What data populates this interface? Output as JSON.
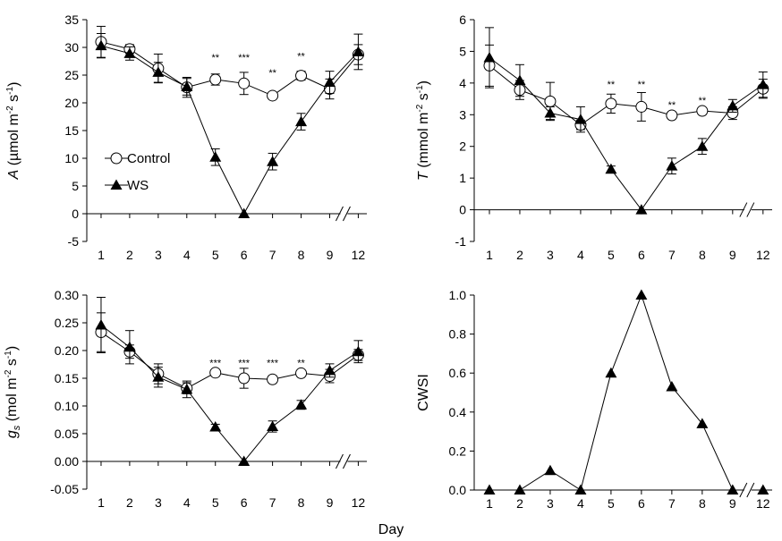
{
  "figure": {
    "xlabel": "Day"
  },
  "legend": {
    "control": "Control",
    "ws": "WS"
  },
  "chart_data": [
    {
      "id": "A",
      "type": "line",
      "ylabel": "A (µmol m⁻² s⁻¹)",
      "ylabel_italic": "A",
      "ylabel_rest": " (µmol m",
      "ylabel_exp1": "-2",
      "ylabel_mid": " s",
      "ylabel_exp2": "-1",
      "ylabel_end": ")",
      "ylim": [
        -5,
        35
      ],
      "yticks": [
        -5,
        0,
        5,
        10,
        15,
        20,
        25,
        30,
        35
      ],
      "ytick_labels": [
        "-5",
        "0",
        "5",
        "10",
        "15",
        "20",
        "25",
        "30",
        "35"
      ],
      "ytick_decimals": 0,
      "x": [
        "1",
        "2",
        "3",
        "4",
        "5",
        "6",
        "7",
        "8",
        "9",
        "12"
      ],
      "axis_break": "between 9 and 12",
      "series": [
        {
          "name": "Control",
          "marker": "open-circle",
          "values": [
            31.0,
            29.7,
            26.2,
            22.8,
            24.2,
            23.5,
            21.3,
            24.9,
            22.5,
            28.7
          ],
          "errors": [
            2.8,
            0.8,
            2.6,
            1.8,
            1.0,
            2.0,
            0.5,
            0.8,
            1.8,
            1.8
          ]
        },
        {
          "name": "WS",
          "marker": "filled-triangle",
          "values": [
            30.3,
            28.9,
            25.5,
            22.9,
            10.2,
            0.0,
            9.4,
            16.6,
            23.7,
            29.2
          ],
          "errors": [
            2.2,
            1.2,
            1.8,
            1.5,
            1.5,
            0.0,
            1.5,
            1.5,
            2.0,
            3.2
          ]
        }
      ],
      "annotations": [
        {
          "x": "5",
          "text": "**",
          "y": 27.6
        },
        {
          "x": "6",
          "text": "***",
          "y": 27.6
        },
        {
          "x": "7",
          "text": "**",
          "y": 24.8
        },
        {
          "x": "8",
          "text": "**",
          "y": 27.8
        }
      ],
      "grid": false
    },
    {
      "id": "T",
      "type": "line",
      "ylabel": "T (mmol m⁻² s⁻¹)",
      "ylabel_italic": "T",
      "ylabel_rest": " (mmol m",
      "ylabel_exp1": "-2",
      "ylabel_mid": " s",
      "ylabel_exp2": "-1",
      "ylabel_end": ")",
      "ylim": [
        -1,
        6
      ],
      "yticks": [
        -1,
        0,
        1,
        2,
        3,
        4,
        5,
        6
      ],
      "ytick_labels": [
        "-1",
        "0",
        "1",
        "2",
        "3",
        "4",
        "5",
        "6"
      ],
      "ytick_decimals": 0,
      "x": [
        "1",
        "2",
        "3",
        "4",
        "5",
        "6",
        "7",
        "8",
        "9",
        "12"
      ],
      "axis_break": "between 9 and 12",
      "series": [
        {
          "name": "Control",
          "marker": "open-circle",
          "values": [
            4.55,
            3.78,
            3.42,
            2.68,
            3.35,
            3.25,
            2.98,
            3.12,
            3.05,
            3.82
          ],
          "errors": [
            0.65,
            0.3,
            0.6,
            0.15,
            0.3,
            0.45,
            0.1,
            0.1,
            0.2,
            0.3
          ]
        },
        {
          "name": "WS",
          "marker": "filled-triangle",
          "values": [
            4.8,
            4.08,
            3.05,
            2.85,
            1.28,
            0.0,
            1.38,
            2.0,
            3.28,
            3.95
          ],
          "errors": [
            0.95,
            0.5,
            0.2,
            0.4,
            0.1,
            0.0,
            0.25,
            0.25,
            0.2,
            0.4
          ]
        }
      ],
      "annotations": [
        {
          "x": "5",
          "text": "**",
          "y": 3.85
        },
        {
          "x": "6",
          "text": "**",
          "y": 3.85
        },
        {
          "x": "7",
          "text": "**",
          "y": 3.2
        },
        {
          "x": "8",
          "text": "**",
          "y": 3.35
        }
      ],
      "grid": false
    },
    {
      "id": "gs",
      "type": "line",
      "ylabel": "gs (mol m⁻² s⁻¹)",
      "ylabel_italic": "g",
      "ylabel_sub": "s",
      "ylabel_rest": " (mol m",
      "ylabel_exp1": "-2",
      "ylabel_mid": " s",
      "ylabel_exp2": "-1",
      "ylabel_end": ")",
      "ylim": [
        -0.05,
        0.3
      ],
      "yticks": [
        -0.05,
        0.0,
        0.05,
        0.1,
        0.15,
        0.2,
        0.25,
        0.3
      ],
      "ytick_labels": [
        "-0.05",
        "0.00",
        "0.05",
        "0.10",
        "0.15",
        "0.20",
        "0.25",
        "0.30"
      ],
      "ytick_decimals": 2,
      "x": [
        "1",
        "2",
        "3",
        "4",
        "5",
        "6",
        "7",
        "8",
        "9",
        "12"
      ],
      "axis_break": "between 9 and 12",
      "series": [
        {
          "name": "Control",
          "marker": "open-circle",
          "values": [
            0.233,
            0.198,
            0.158,
            0.132,
            0.16,
            0.15,
            0.148,
            0.159,
            0.154,
            0.192
          ],
          "errors": [
            0.035,
            0.012,
            0.018,
            0.01,
            0.005,
            0.018,
            0.005,
            0.005,
            0.012,
            0.01
          ]
        },
        {
          "name": "WS",
          "marker": "filled-triangle",
          "values": [
            0.246,
            0.206,
            0.152,
            0.13,
            0.062,
            0.0,
            0.063,
            0.102,
            0.164,
            0.198
          ],
          "errors": [
            0.05,
            0.03,
            0.018,
            0.015,
            0.005,
            0.0,
            0.01,
            0.008,
            0.012,
            0.02
          ]
        }
      ],
      "annotations": [
        {
          "x": "5",
          "text": "***",
          "y": 0.172
        },
        {
          "x": "6",
          "text": "***",
          "y": 0.172
        },
        {
          "x": "7",
          "text": "***",
          "y": 0.172
        },
        {
          "x": "8",
          "text": "**",
          "y": 0.172
        }
      ],
      "grid": false
    },
    {
      "id": "CWSI",
      "type": "line",
      "ylabel": "CWSI",
      "ylabel_rest": "CWSI",
      "ylim": [
        0.0,
        1.0
      ],
      "yticks": [
        0.0,
        0.2,
        0.4,
        0.6,
        0.8,
        1.0
      ],
      "ytick_labels": [
        "0.0",
        "0.2",
        "0.4",
        "0.6",
        "0.8",
        "1.0"
      ],
      "ytick_decimals": 1,
      "x": [
        "1",
        "2",
        "3",
        "4",
        "5",
        "6",
        "7",
        "8",
        "9",
        "12"
      ],
      "axis_break": "between 9 and 12",
      "series": [
        {
          "name": "WS",
          "marker": "filled-triangle",
          "values": [
            0.0,
            0.0,
            0.1,
            0.0,
            0.6,
            1.0,
            0.53,
            0.34,
            0.0,
            0.0
          ],
          "errors": [
            0,
            0,
            0,
            0,
            0,
            0,
            0,
            0,
            0,
            0
          ],
          "connect_to_last": false
        }
      ],
      "annotations": [],
      "grid": false
    }
  ]
}
